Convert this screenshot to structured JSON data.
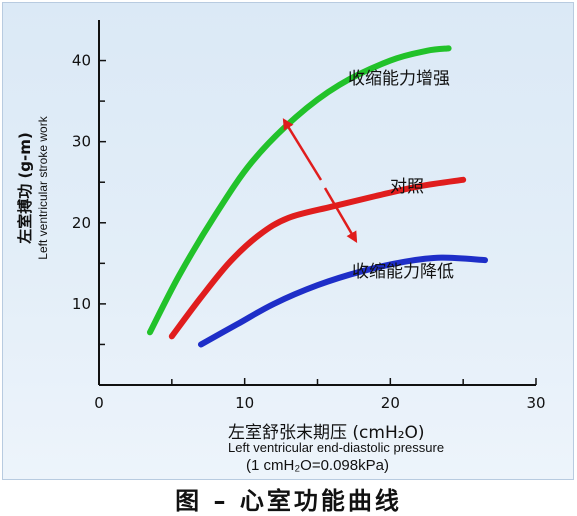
{
  "chart_data": {
    "type": "line",
    "title": "",
    "xlabel": "左室舒张末期压 (cmH₂O)",
    "xlabel_en": "Left ventricular end-diastolic pressure",
    "conversion_note": "(1 cmH₂O=0.098kPa)",
    "ylabel": "左室搏功 (g-m)",
    "ylabel_en": "Left ventricular stroke work",
    "xlim": [
      0,
      30
    ],
    "ylim": [
      0,
      45
    ],
    "x_ticks": [
      0,
      10,
      20,
      30
    ],
    "y_ticks": [
      10,
      20,
      30,
      40
    ],
    "grid": false,
    "series": [
      {
        "name": "收缩能力增强",
        "color": "#22c22a",
        "points": [
          [
            3.5,
            6.5
          ],
          [
            5.5,
            13.5
          ],
          [
            8,
            21
          ],
          [
            10.5,
            27.5
          ],
          [
            13.5,
            33
          ],
          [
            16.5,
            37
          ],
          [
            20,
            40
          ],
          [
            22.5,
            41.2
          ],
          [
            24,
            41.5
          ]
        ]
      },
      {
        "name": "对照",
        "color": "#e01d1d",
        "points": [
          [
            5,
            6
          ],
          [
            7,
            10.8
          ],
          [
            9,
            15.2
          ],
          [
            11,
            18.5
          ],
          [
            13,
            20.6
          ],
          [
            16,
            22
          ],
          [
            19,
            23.3
          ],
          [
            22,
            24.5
          ],
          [
            25,
            25.3
          ]
        ]
      },
      {
        "name": "收缩能力降低",
        "color": "#1e2ec8",
        "points": [
          [
            7,
            5
          ],
          [
            9.5,
            7.5
          ],
          [
            12,
            10
          ],
          [
            15,
            12.3
          ],
          [
            18,
            14
          ],
          [
            21,
            15.2
          ],
          [
            23.5,
            15.7
          ],
          [
            26.5,
            15.4
          ]
        ]
      }
    ],
    "arrow_color": "#e01d1d",
    "caption": "图 – 心室功能曲线"
  }
}
